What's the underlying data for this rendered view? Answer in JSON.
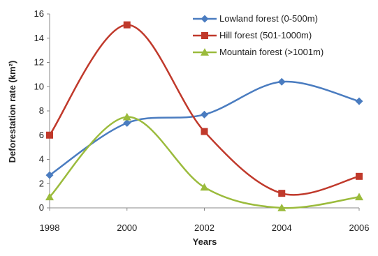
{
  "chart_data": {
    "type": "line",
    "title": "",
    "xlabel": "Years",
    "ylabel": "Deforestation rate (km²)",
    "x": [
      1998,
      2000,
      2002,
      2004,
      2006
    ],
    "xlim": [
      1998,
      2006
    ],
    "ylim": [
      0,
      16
    ],
    "yticks": [
      0,
      2,
      4,
      6,
      8,
      10,
      12,
      14,
      16
    ],
    "xticks": [
      "1998",
      "2000",
      "2002",
      "2004",
      "2006"
    ],
    "grid": false,
    "smooth": true,
    "legend_position": "top-right",
    "series": [
      {
        "name": "Lowland forest (0-500m)",
        "values": [
          2.7,
          7.0,
          7.7,
          10.4,
          8.8
        ],
        "color": "#4a7cc0",
        "marker": "diamond"
      },
      {
        "name": "Hill forest (501-1000m)",
        "values": [
          6.0,
          15.1,
          6.3,
          1.2,
          2.6
        ],
        "color": "#c0392b",
        "marker": "square"
      },
      {
        "name": "Mountain forest (>1001m)",
        "values": [
          0.9,
          7.5,
          1.7,
          0.0,
          0.9
        ],
        "color": "#9bbb3c",
        "marker": "triangle"
      }
    ]
  }
}
